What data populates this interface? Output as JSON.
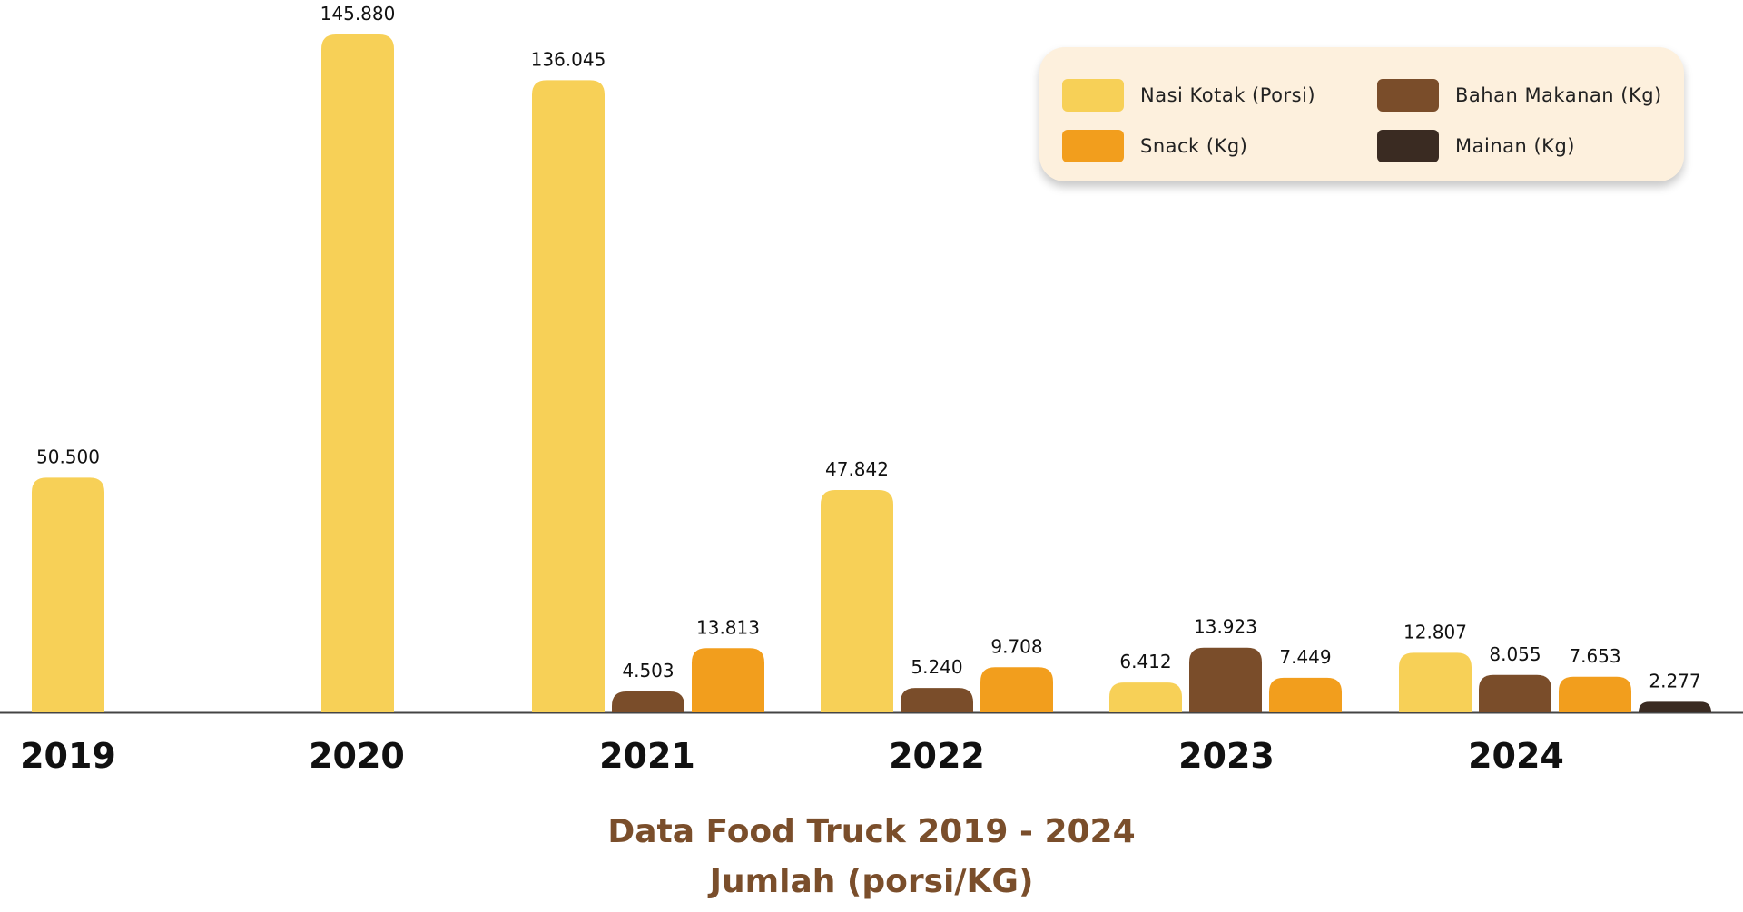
{
  "chart_data": {
    "type": "bar",
    "title": "Data Food Truck 2019 -  2024",
    "ylabel": "Jumlah (porsi/KG)",
    "categories": [
      "2019",
      "2020",
      "2021",
      "2022",
      "2023",
      "2024"
    ],
    "ylim": [
      0,
      150000
    ],
    "grid": false,
    "legend_position": "top-right",
    "series": [
      {
        "name": "Nasi Kotak (Porsi)",
        "color": "#f7d057",
        "values": [
          50500,
          145880,
          136045,
          47842,
          6412,
          12807
        ],
        "labels": [
          "50.500",
          "145.880",
          "136.045",
          "47.842",
          "6.412",
          "12.807"
        ]
      },
      {
        "name": "Bahan Makanan (Kg)",
        "color": "#7a4d2a",
        "values": [
          null,
          null,
          4503,
          5240,
          13923,
          8055
        ],
        "labels": [
          null,
          null,
          "4.503",
          "5.240",
          "13.923",
          "8.055"
        ]
      },
      {
        "name": "Snack (Kg)",
        "color": "#f29e1d",
        "values": [
          null,
          null,
          13813,
          9708,
          7449,
          7653
        ],
        "labels": [
          null,
          null,
          "13.813",
          "9.708",
          "7.449",
          "7.653"
        ]
      },
      {
        "name": "Mainan (Kg)",
        "color": "#3a2b22",
        "values": [
          null,
          null,
          null,
          null,
          null,
          2277
        ],
        "labels": [
          null,
          null,
          null,
          null,
          null,
          "2.277"
        ]
      }
    ]
  }
}
